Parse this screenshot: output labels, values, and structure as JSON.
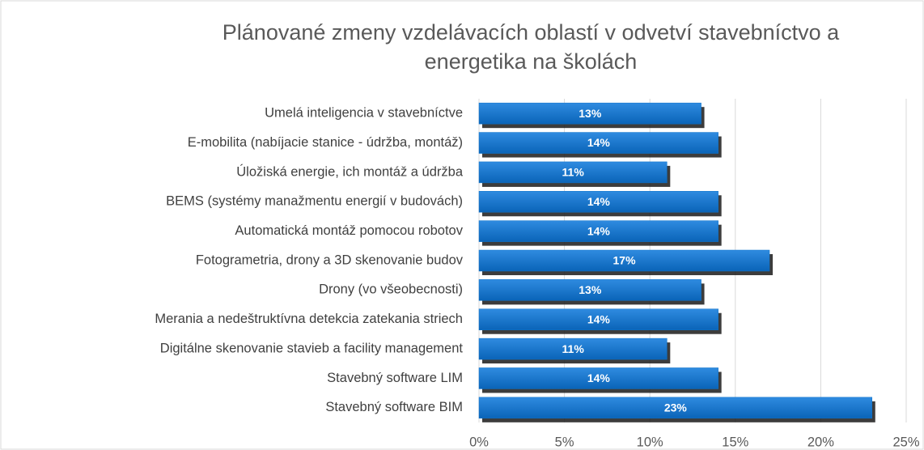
{
  "chart_data": {
    "type": "bar",
    "orientation": "horizontal",
    "title": "Plánované zmeny vzdelávacích oblastí v odvetví stavebníctvo a energetika na školách",
    "categories": [
      "Umelá inteligencia v stavebníctve",
      "E-mobilita (nabíjacie stanice - údržba, montáž)",
      "Úložiská energie, ich montáž a údržba",
      "BEMS (systémy manažmentu energií v budovách)",
      "Automatická montáž pomocou robotov",
      "Fotogrametria, drony a 3D skenovanie budov",
      "Drony (vo všeobecnosti)",
      "Merania a nedeštruktívna detekcia zatekania striech",
      "Digitálne skenovanie stavieb a facility management",
      "Stavebný software LIM",
      "Stavebný software BIM"
    ],
    "values": [
      13,
      14,
      11,
      14,
      14,
      17,
      13,
      14,
      11,
      14,
      23
    ],
    "value_labels": [
      "13%",
      "14%",
      "11%",
      "14%",
      "14%",
      "17%",
      "13%",
      "14%",
      "11%",
      "14%",
      "23%"
    ],
    "color": "#0f73c9",
    "xlim": [
      0,
      25
    ],
    "xticks": [
      {
        "value": 0,
        "label": "0%"
      },
      {
        "value": 5,
        "label": "5%"
      },
      {
        "value": 10,
        "label": "10%"
      },
      {
        "value": 15,
        "label": "15%"
      },
      {
        "value": 20,
        "label": "20%"
      },
      {
        "value": 25,
        "label": "25%"
      }
    ],
    "grid": true
  }
}
